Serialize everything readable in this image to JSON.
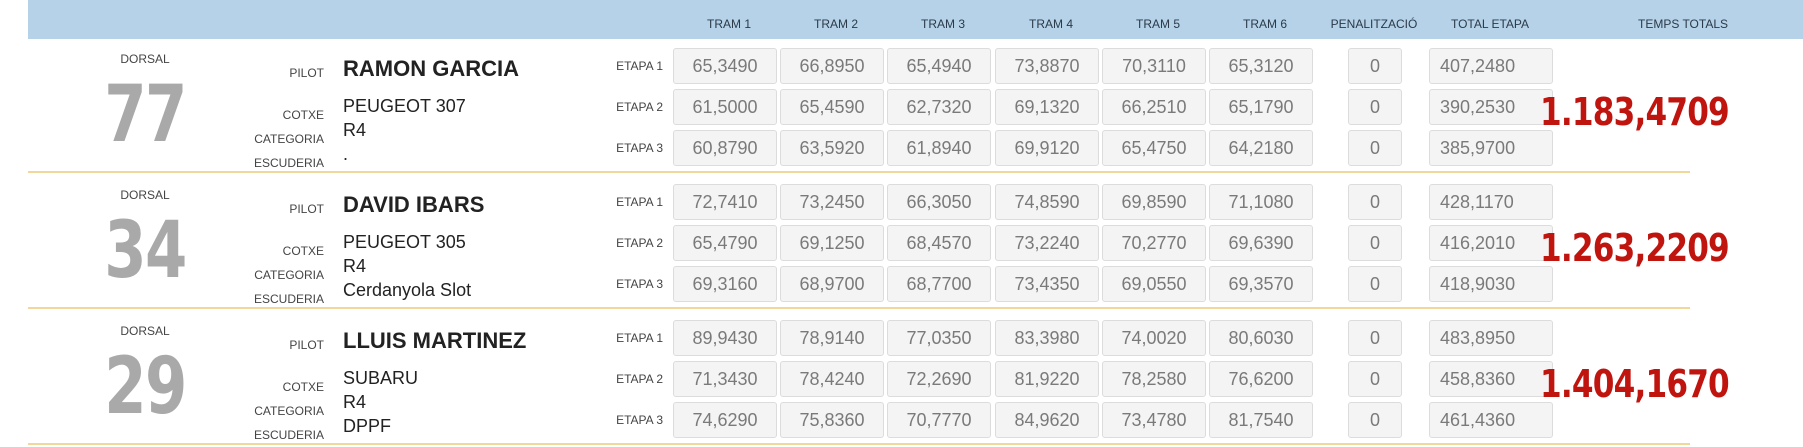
{
  "header": {
    "columns": [
      "TRAM 1",
      "TRAM 2",
      "TRAM 3",
      "TRAM 4",
      "TRAM 5",
      "TRAM 6",
      "PENALITZACIÓ",
      "TOTAL ETAPA",
      "TEMPS TOTALS"
    ]
  },
  "labels": {
    "dorsal": "DORSAL",
    "pilot": "PILOT",
    "cotxe": "COTXE",
    "categoria": "CATEGORIA",
    "escuderia": "ESCUDERIA"
  },
  "entries": [
    {
      "dorsal": "77",
      "pilot": "RAMON GARCIA",
      "cotxe": "PEUGEOT 307",
      "categoria": "R4",
      "escuderia": ".",
      "temps_totals": "1.183,4709",
      "etapes": [
        {
          "label": "ETAPA 1",
          "trams": [
            "65,3490",
            "66,8950",
            "65,4940",
            "73,8870",
            "70,3110",
            "65,3120"
          ],
          "penalitzacio": "0",
          "total": "407,2480"
        },
        {
          "label": "ETAPA 2",
          "trams": [
            "61,5000",
            "65,4590",
            "62,7320",
            "69,1320",
            "66,2510",
            "65,1790"
          ],
          "penalitzacio": "0",
          "total": "390,2530"
        },
        {
          "label": "ETAPA 3",
          "trams": [
            "60,8790",
            "63,5920",
            "61,8940",
            "69,9120",
            "65,4750",
            "64,2180"
          ],
          "penalitzacio": "0",
          "total": "385,9700"
        }
      ]
    },
    {
      "dorsal": "34",
      "pilot": "DAVID IBARS",
      "cotxe": "PEUGEOT 305",
      "categoria": "R4",
      "escuderia": "Cerdanyola Slot",
      "temps_totals": "1.263,2209",
      "etapes": [
        {
          "label": "ETAPA 1",
          "trams": [
            "72,7410",
            "73,2450",
            "66,3050",
            "74,8590",
            "69,8590",
            "71,1080"
          ],
          "penalitzacio": "0",
          "total": "428,1170"
        },
        {
          "label": "ETAPA 2",
          "trams": [
            "65,4790",
            "69,1250",
            "68,4570",
            "73,2240",
            "70,2770",
            "69,6390"
          ],
          "penalitzacio": "0",
          "total": "416,2010"
        },
        {
          "label": "ETAPA 3",
          "trams": [
            "69,3160",
            "68,9700",
            "68,7700",
            "73,4350",
            "69,0550",
            "69,3570"
          ],
          "penalitzacio": "0",
          "total": "418,9030"
        }
      ]
    },
    {
      "dorsal": "29",
      "pilot": "LLUIS MARTINEZ",
      "cotxe": "SUBARU",
      "categoria": "R4",
      "escuderia": "DPPF",
      "temps_totals": "1.404,1670",
      "etapes": [
        {
          "label": "ETAPA 1",
          "trams": [
            "89,9430",
            "78,9140",
            "77,0350",
            "83,3980",
            "74,0020",
            "80,6030"
          ],
          "penalitzacio": "0",
          "total": "483,8950"
        },
        {
          "label": "ETAPA 2",
          "trams": [
            "71,3430",
            "78,4240",
            "72,2690",
            "81,9220",
            "78,2580",
            "76,6200"
          ],
          "penalitzacio": "0",
          "total": "458,8360"
        },
        {
          "label": "ETAPA 3",
          "trams": [
            "74,6290",
            "75,8360",
            "70,7770",
            "84,9620",
            "73,4780",
            "81,7540"
          ],
          "penalitzacio": "0",
          "total": "461,4360"
        }
      ]
    }
  ]
}
